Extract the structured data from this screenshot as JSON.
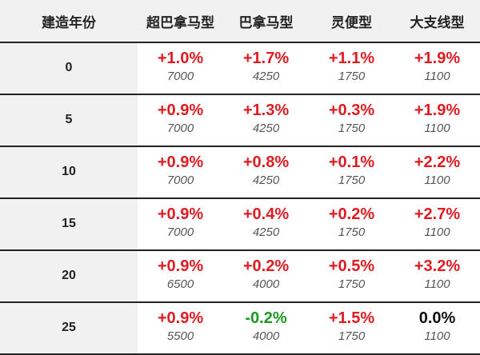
{
  "chart_data": {
    "type": "table",
    "columns": [
      "建造年份",
      "超巴拿马型",
      "巴拿马型",
      "灵便型",
      "大支线型"
    ],
    "rows": [
      {
        "year": "0",
        "pct": [
          "+1.0%",
          "+1.7%",
          "+1.1%",
          "+1.9%"
        ],
        "values": [
          "7000",
          "4250",
          "1750",
          "1100"
        ],
        "trend": [
          "up",
          "up",
          "up",
          "up"
        ]
      },
      {
        "year": "5",
        "pct": [
          "+0.9%",
          "+1.3%",
          "+0.3%",
          "+1.9%"
        ],
        "values": [
          "7000",
          "4250",
          "1750",
          "1100"
        ],
        "trend": [
          "up",
          "up",
          "up",
          "up"
        ]
      },
      {
        "year": "10",
        "pct": [
          "+0.9%",
          "+0.8%",
          "+0.1%",
          "+2.2%"
        ],
        "values": [
          "7000",
          "4250",
          "1750",
          "1100"
        ],
        "trend": [
          "up",
          "up",
          "up",
          "up"
        ]
      },
      {
        "year": "15",
        "pct": [
          "+0.9%",
          "+0.4%",
          "+0.2%",
          "+2.7%"
        ],
        "values": [
          "7000",
          "4250",
          "1750",
          "1100"
        ],
        "trend": [
          "up",
          "up",
          "up",
          "up"
        ]
      },
      {
        "year": "20",
        "pct": [
          "+0.9%",
          "+0.2%",
          "+0.5%",
          "+3.2%"
        ],
        "values": [
          "6500",
          "4000",
          "1750",
          "1100"
        ],
        "trend": [
          "up",
          "up",
          "up",
          "up"
        ]
      },
      {
        "year": "25",
        "pct": [
          "+0.9%",
          "-0.2%",
          "+1.5%",
          "0.0%"
        ],
        "values": [
          "5500",
          "4000",
          "1750",
          "1100"
        ],
        "trend": [
          "up",
          "down",
          "up",
          "flat"
        ]
      }
    ]
  },
  "colors": {
    "up": "#e01b22",
    "down": "#1c9a21",
    "flat": "#111111",
    "header_bg": "#f1f1f1"
  }
}
